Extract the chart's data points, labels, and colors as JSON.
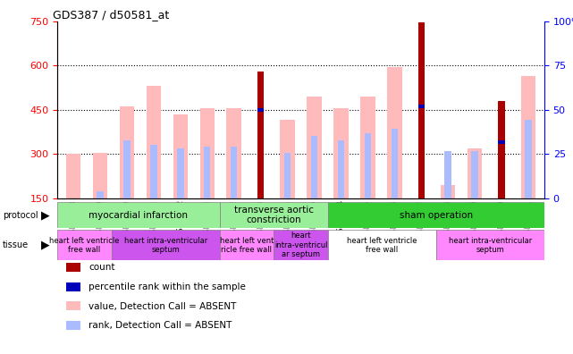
{
  "title": "GDS387 / d50581_at",
  "samples": [
    "GSM6118",
    "GSM6119",
    "GSM6120",
    "GSM6121",
    "GSM6122",
    "GSM6123",
    "GSM6132",
    "GSM6133",
    "GSM6134",
    "GSM6135",
    "GSM6124",
    "GSM6125",
    "GSM6126",
    "GSM6127",
    "GSM6128",
    "GSM6129",
    "GSM6130",
    "GSM6131"
  ],
  "count_values": [
    null,
    null,
    null,
    null,
    null,
    null,
    null,
    580,
    null,
    null,
    null,
    null,
    null,
    745,
    null,
    null,
    480,
    null
  ],
  "percentile_values_left": [
    null,
    null,
    null,
    null,
    null,
    null,
    null,
    450,
    null,
    null,
    null,
    null,
    null,
    460,
    null,
    null,
    340,
    null
  ],
  "absent_value_bars": [
    300,
    305,
    460,
    530,
    435,
    455,
    455,
    null,
    415,
    495,
    455,
    495,
    595,
    null,
    195,
    320,
    null,
    565
  ],
  "absent_rank_bars": [
    null,
    null,
    345,
    330,
    320,
    325,
    325,
    null,
    305,
    360,
    345,
    370,
    385,
    null,
    null,
    null,
    null,
    null
  ],
  "absent_rank_bars2": [
    null,
    175,
    null,
    null,
    null,
    null,
    null,
    null,
    null,
    null,
    null,
    null,
    null,
    null,
    310,
    310,
    null,
    415
  ],
  "ylim_left": [
    150,
    750
  ],
  "yticks_left": [
    150,
    300,
    450,
    600,
    750
  ],
  "ylim_right": [
    0,
    100
  ],
  "yticks_right": [
    0,
    25,
    50,
    75,
    100
  ],
  "count_color": "#aa0000",
  "percentile_color": "#0000bb",
  "absent_value_color": "#ffbbbb",
  "absent_rank_color": "#aabbff",
  "proto_groups": [
    {
      "label": "myocardial infarction",
      "start": 0,
      "end": 6,
      "color": "#99ee99"
    },
    {
      "label": "transverse aortic\nconstriction",
      "start": 6,
      "end": 10,
      "color": "#99ee99"
    },
    {
      "label": "sham operation",
      "start": 10,
      "end": 18,
      "color": "#33cc33"
    }
  ],
  "tissue_groups": [
    {
      "label": "heart left ventricle\nfree wall",
      "start": 0,
      "end": 2,
      "color": "#ff88ff"
    },
    {
      "label": "heart intra-ventricular\nseptum",
      "start": 2,
      "end": 6,
      "color": "#cc55ee"
    },
    {
      "label": "heart left vent\nricle free wall",
      "start": 6,
      "end": 8,
      "color": "#ff88ff"
    },
    {
      "label": "heart\nintra-ventricul\nar septum",
      "start": 8,
      "end": 10,
      "color": "#cc55ee"
    },
    {
      "label": "heart left ventricle\nfree wall",
      "start": 10,
      "end": 14,
      "color": "#ffffff"
    },
    {
      "label": "heart intra-ventricular\nseptum",
      "start": 14,
      "end": 18,
      "color": "#ff88ff"
    }
  ],
  "legend_items": [
    {
      "label": "count",
      "color": "#aa0000"
    },
    {
      "label": "percentile rank within the sample",
      "color": "#0000bb"
    },
    {
      "label": "value, Detection Call = ABSENT",
      "color": "#ffbbbb"
    },
    {
      "label": "rank, Detection Call = ABSENT",
      "color": "#aabbff"
    }
  ]
}
